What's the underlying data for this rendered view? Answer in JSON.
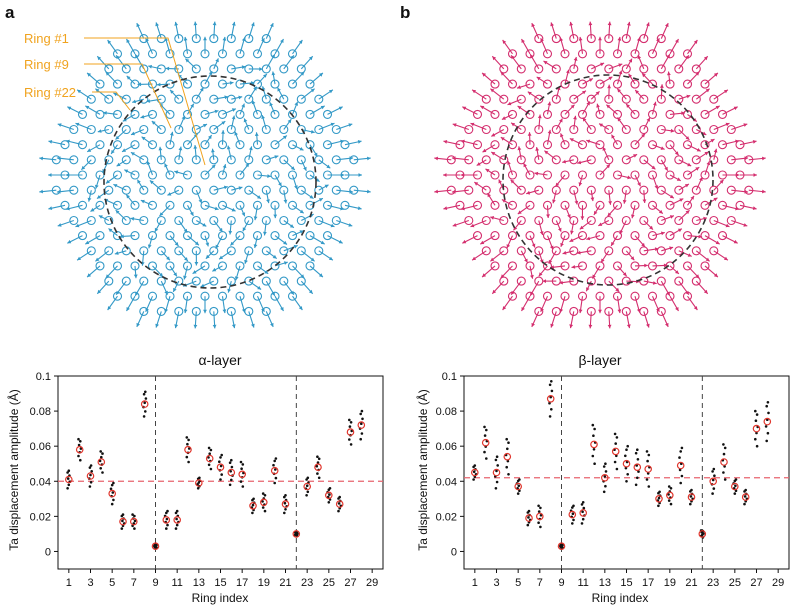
{
  "panels": {
    "a": "a",
    "b": "b"
  },
  "ring_labels": [
    "Ring #1",
    "Ring #9",
    "Ring #22"
  ],
  "colors": {
    "alpha": "#3399c7",
    "beta": "#d42e6e",
    "ring_label": "#f0a31f",
    "mean_marker": "#e0342b",
    "threshold": "#e8646e",
    "dashed": "#333333"
  },
  "chart_data": [
    {
      "type": "scatter",
      "title": "α-layer",
      "xlabel": "Ring index",
      "ylabel": "Ta displacement amplitude (Å)",
      "xlim": [
        0,
        30
      ],
      "ylim": [
        -0.01,
        0.1
      ],
      "xticks": [
        1,
        3,
        5,
        7,
        9,
        11,
        13,
        15,
        17,
        19,
        21,
        23,
        25,
        27,
        29
      ],
      "xtick_labels": [
        "1",
        "3",
        "5",
        "7",
        "9",
        "11",
        "13",
        "15",
        "17",
        "19",
        "21",
        "23",
        "25",
        "27",
        "29"
      ],
      "yticks": [
        0,
        0.02,
        0.04,
        0.06,
        0.08,
        0.1
      ],
      "ytick_labels": [
        "0",
        "0.02",
        "0.04",
        "0.06",
        "0.08",
        "0.1"
      ],
      "vlines": [
        9,
        22
      ],
      "hline": 0.04,
      "rings": [
        1,
        2,
        3,
        4,
        5,
        6,
        7,
        8,
        9,
        10,
        11,
        12,
        13,
        14,
        15,
        16,
        17,
        18,
        19,
        20,
        21,
        22,
        23,
        24,
        25,
        26,
        27,
        28
      ],
      "mean": [
        0.041,
        0.058,
        0.043,
        0.051,
        0.033,
        0.017,
        0.017,
        0.084,
        0.003,
        0.018,
        0.018,
        0.058,
        0.039,
        0.053,
        0.048,
        0.045,
        0.044,
        0.026,
        0.028,
        0.046,
        0.027,
        0.01,
        0.037,
        0.048,
        0.032,
        0.027,
        0.068,
        0.072
      ],
      "spread": [
        0.005,
        0.006,
        0.006,
        0.006,
        0.006,
        0.004,
        0.004,
        0.007,
        0.001,
        0.005,
        0.005,
        0.007,
        0.003,
        0.006,
        0.007,
        0.007,
        0.007,
        0.004,
        0.005,
        0.007,
        0.005,
        0.001,
        0.005,
        0.006,
        0.004,
        0.004,
        0.007,
        0.008
      ]
    },
    {
      "type": "scatter",
      "title": "β-layer",
      "xlabel": "Ring index",
      "ylabel": "Ta displacement amplitude (Å)",
      "xlim": [
        0,
        30
      ],
      "ylim": [
        -0.01,
        0.1
      ],
      "xticks": [
        1,
        3,
        5,
        7,
        9,
        11,
        13,
        15,
        17,
        19,
        21,
        23,
        25,
        27,
        29
      ],
      "xtick_labels": [
        "1",
        "3",
        "5",
        "7",
        "9",
        "11",
        "13",
        "15",
        "17",
        "19",
        "21",
        "23",
        "25",
        "27",
        "29"
      ],
      "yticks": [
        0,
        0.02,
        0.04,
        0.06,
        0.08,
        0.1
      ],
      "ytick_labels": [
        "0",
        "0.02",
        "0.04",
        "0.06",
        "0.08",
        "0.1"
      ],
      "vlines": [
        9,
        22
      ],
      "hline": 0.042,
      "rings": [
        1,
        2,
        3,
        4,
        5,
        6,
        7,
        8,
        9,
        10,
        11,
        12,
        13,
        14,
        15,
        16,
        17,
        18,
        19,
        20,
        21,
        22,
        23,
        24,
        25,
        26,
        27,
        28
      ],
      "mean": [
        0.045,
        0.062,
        0.045,
        0.054,
        0.037,
        0.019,
        0.02,
        0.087,
        0.003,
        0.021,
        0.022,
        0.061,
        0.042,
        0.057,
        0.05,
        0.048,
        0.047,
        0.03,
        0.032,
        0.049,
        0.031,
        0.01,
        0.04,
        0.051,
        0.037,
        0.031,
        0.07,
        0.074
      ],
      "spread": [
        0.004,
        0.009,
        0.009,
        0.01,
        0.004,
        0.004,
        0.006,
        0.01,
        0.001,
        0.005,
        0.006,
        0.011,
        0.008,
        0.01,
        0.01,
        0.01,
        0.01,
        0.004,
        0.005,
        0.01,
        0.004,
        0.002,
        0.007,
        0.01,
        0.004,
        0.004,
        0.01,
        0.011
      ]
    }
  ]
}
